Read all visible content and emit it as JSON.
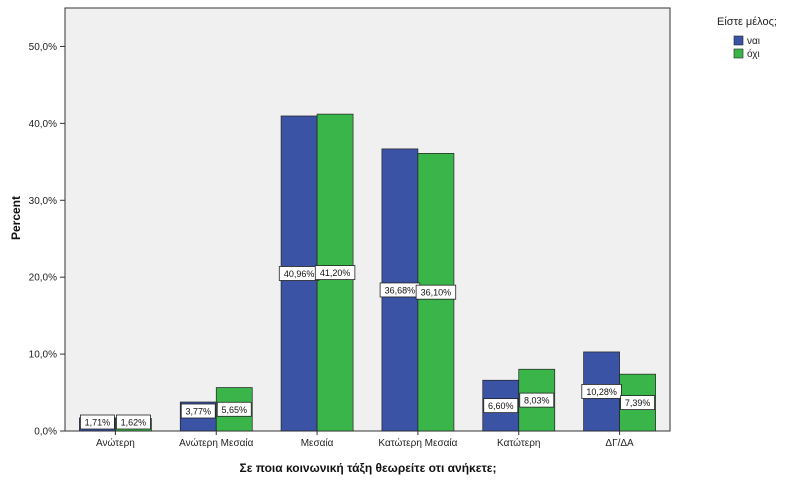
{
  "chart_data": {
    "type": "bar",
    "categories": [
      "Ανώτερη",
      "Ανώτερη Μεσαία",
      "Μεσαία",
      "Κατώτερη Μεσαία",
      "Κατώτερη",
      "ΔΓ/ΔΑ"
    ],
    "series": [
      {
        "name": "ναι",
        "values": [
          1.71,
          3.77,
          40.96,
          36.68,
          6.6,
          10.28
        ],
        "labels": [
          "1,71%",
          "3,77%",
          "40,96%",
          "36,68%",
          "6,60%",
          "10,28%"
        ]
      },
      {
        "name": "όχι",
        "values": [
          1.62,
          5.65,
          41.2,
          36.1,
          8.03,
          7.39
        ],
        "labels": [
          "1,62%",
          "5,65%",
          "41,20%",
          "36,10%",
          "8,03%",
          "7,39%"
        ]
      }
    ],
    "xlabel": "Σε ποια κοινωνική τάξη θεωρείτε οτι ανήκετε;",
    "ylabel": "Percent",
    "ylim": [
      0,
      55
    ],
    "yticks": [
      0,
      10,
      20,
      30,
      40,
      50
    ],
    "ytick_labels": [
      "0,0%",
      "10,0%",
      "20,0%",
      "30,0%",
      "40,0%",
      "50,0%"
    ],
    "legend": {
      "title": "Είστε μέλος;",
      "position": "top-right"
    },
    "grid": false,
    "colors": {
      "series_0": "#3a53a4",
      "series_1": "#3ab54a",
      "plot_bg": "#f0f0f0",
      "frame": "#333333"
    }
  }
}
